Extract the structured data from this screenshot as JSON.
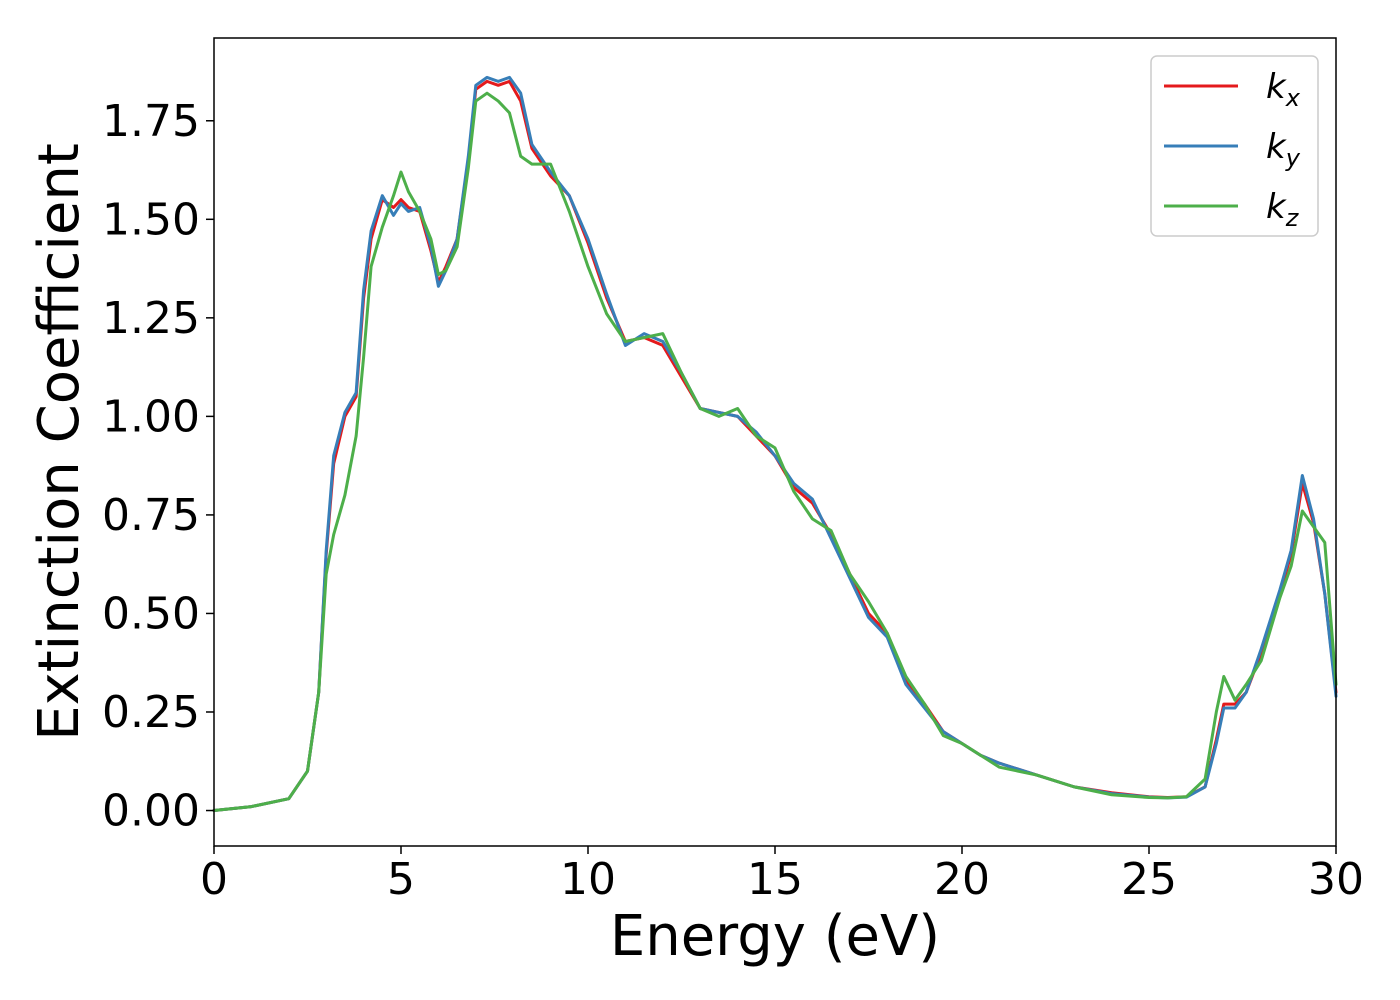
{
  "chart_data": {
    "type": "line",
    "xlabel": "Energy (eV)",
    "ylabel": "Extinction Coefficient",
    "xlim": [
      0,
      30
    ],
    "ylim": [
      -0.09,
      1.96
    ],
    "xticks": [
      0,
      5,
      10,
      15,
      20,
      25,
      30
    ],
    "xtick_labels": [
      "0",
      "5",
      "10",
      "15",
      "20",
      "25",
      "30"
    ],
    "yticks": [
      0,
      0.25,
      0.5,
      0.75,
      1.0,
      1.25,
      1.5,
      1.75
    ],
    "ytick_labels": [
      "0.00",
      "0.25",
      "0.50",
      "0.75",
      "1.00",
      "1.25",
      "1.50",
      "1.75"
    ],
    "grid": false,
    "legend_position": "top-right",
    "series": [
      {
        "name": "k_x",
        "label_base": "k",
        "label_sub": "x",
        "color": "#e41a1c",
        "x": [
          0,
          1,
          2,
          2.5,
          2.8,
          3.0,
          3.2,
          3.5,
          3.8,
          4.0,
          4.2,
          4.5,
          4.8,
          5.0,
          5.2,
          5.5,
          5.8,
          6.0,
          6.2,
          6.5,
          6.8,
          7.0,
          7.3,
          7.6,
          7.9,
          8.2,
          8.5,
          9.0,
          9.5,
          10.0,
          10.5,
          11.0,
          11.5,
          12.0,
          12.5,
          13.0,
          13.5,
          14.0,
          14.5,
          15.0,
          15.5,
          16.0,
          16.5,
          17.0,
          17.5,
          18.0,
          18.5,
          19.0,
          19.5,
          20.0,
          20.5,
          21.0,
          22.0,
          23.0,
          24.0,
          25.0,
          25.5,
          26.0,
          26.5,
          26.8,
          27.0,
          27.3,
          27.6,
          28.0,
          28.5,
          28.8,
          29.1,
          29.4,
          29.7,
          30.0
        ],
        "y": [
          0.0,
          0.01,
          0.03,
          0.1,
          0.3,
          0.65,
          0.88,
          1.0,
          1.05,
          1.3,
          1.45,
          1.55,
          1.53,
          1.55,
          1.53,
          1.52,
          1.42,
          1.34,
          1.38,
          1.45,
          1.65,
          1.83,
          1.85,
          1.84,
          1.85,
          1.8,
          1.68,
          1.61,
          1.56,
          1.44,
          1.3,
          1.19,
          1.2,
          1.18,
          1.1,
          1.02,
          1.01,
          1.0,
          0.95,
          0.9,
          0.82,
          0.78,
          0.7,
          0.6,
          0.5,
          0.45,
          0.33,
          0.27,
          0.2,
          0.17,
          0.14,
          0.12,
          0.09,
          0.06,
          0.045,
          0.035,
          0.033,
          0.035,
          0.06,
          0.18,
          0.27,
          0.27,
          0.3,
          0.4,
          0.55,
          0.65,
          0.83,
          0.73,
          0.55,
          0.3
        ]
      },
      {
        "name": "k_y",
        "label_base": "k",
        "label_sub": "y",
        "color": "#377eb8",
        "x": [
          0,
          1,
          2,
          2.5,
          2.8,
          3.0,
          3.2,
          3.5,
          3.8,
          4.0,
          4.2,
          4.5,
          4.8,
          5.0,
          5.2,
          5.5,
          5.8,
          6.0,
          6.2,
          6.5,
          6.8,
          7.0,
          7.3,
          7.6,
          7.9,
          8.2,
          8.5,
          9.0,
          9.5,
          10.0,
          10.5,
          11.0,
          11.5,
          12.0,
          12.5,
          13.0,
          13.5,
          14.0,
          14.5,
          15.0,
          15.5,
          16.0,
          16.5,
          17.0,
          17.5,
          18.0,
          18.5,
          19.0,
          19.5,
          20.0,
          20.5,
          21.0,
          22.0,
          23.0,
          24.0,
          25.0,
          25.5,
          26.0,
          26.5,
          26.8,
          27.0,
          27.3,
          27.6,
          28.0,
          28.5,
          28.8,
          29.1,
          29.4,
          29.7,
          30.0
        ],
        "y": [
          0.0,
          0.01,
          0.03,
          0.1,
          0.3,
          0.66,
          0.9,
          1.01,
          1.06,
          1.32,
          1.47,
          1.56,
          1.51,
          1.54,
          1.52,
          1.53,
          1.43,
          1.33,
          1.37,
          1.45,
          1.66,
          1.84,
          1.86,
          1.85,
          1.86,
          1.82,
          1.69,
          1.62,
          1.56,
          1.45,
          1.31,
          1.18,
          1.21,
          1.19,
          1.11,
          1.02,
          1.01,
          1.0,
          0.96,
          0.9,
          0.83,
          0.79,
          0.69,
          0.59,
          0.49,
          0.44,
          0.32,
          0.26,
          0.2,
          0.17,
          0.14,
          0.12,
          0.09,
          0.06,
          0.043,
          0.034,
          0.032,
          0.034,
          0.06,
          0.17,
          0.26,
          0.26,
          0.3,
          0.41,
          0.56,
          0.66,
          0.85,
          0.74,
          0.55,
          0.29
        ]
      },
      {
        "name": "k_z",
        "label_base": "k",
        "label_sub": "z",
        "color": "#4daf4a",
        "x": [
          0,
          1,
          2,
          2.5,
          2.8,
          3.0,
          3.2,
          3.5,
          3.8,
          4.0,
          4.2,
          4.5,
          4.8,
          5.0,
          5.2,
          5.5,
          5.8,
          6.0,
          6.2,
          6.5,
          6.8,
          7.0,
          7.3,
          7.6,
          7.9,
          8.2,
          8.5,
          9.0,
          9.5,
          10.0,
          10.5,
          11.0,
          11.5,
          12.0,
          12.5,
          13.0,
          13.5,
          14.0,
          14.5,
          15.0,
          15.5,
          16.0,
          16.5,
          17.0,
          17.5,
          18.0,
          18.5,
          19.0,
          19.5,
          20.0,
          20.5,
          21.0,
          22.0,
          23.0,
          24.0,
          25.0,
          25.5,
          26.0,
          26.5,
          26.8,
          27.0,
          27.3,
          27.6,
          28.0,
          28.5,
          28.8,
          29.1,
          29.4,
          29.7,
          30.0
        ],
        "y": [
          0.0,
          0.01,
          0.03,
          0.1,
          0.3,
          0.6,
          0.7,
          0.8,
          0.95,
          1.15,
          1.38,
          1.48,
          1.56,
          1.62,
          1.57,
          1.52,
          1.45,
          1.36,
          1.37,
          1.43,
          1.63,
          1.8,
          1.82,
          1.8,
          1.77,
          1.66,
          1.64,
          1.64,
          1.52,
          1.38,
          1.26,
          1.19,
          1.2,
          1.21,
          1.11,
          1.02,
          1.0,
          1.02,
          0.95,
          0.92,
          0.81,
          0.74,
          0.71,
          0.6,
          0.53,
          0.45,
          0.34,
          0.27,
          0.19,
          0.17,
          0.14,
          0.11,
          0.09,
          0.06,
          0.04,
          0.033,
          0.032,
          0.035,
          0.08,
          0.25,
          0.34,
          0.28,
          0.32,
          0.38,
          0.54,
          0.62,
          0.76,
          0.72,
          0.68,
          0.32
        ]
      }
    ]
  }
}
